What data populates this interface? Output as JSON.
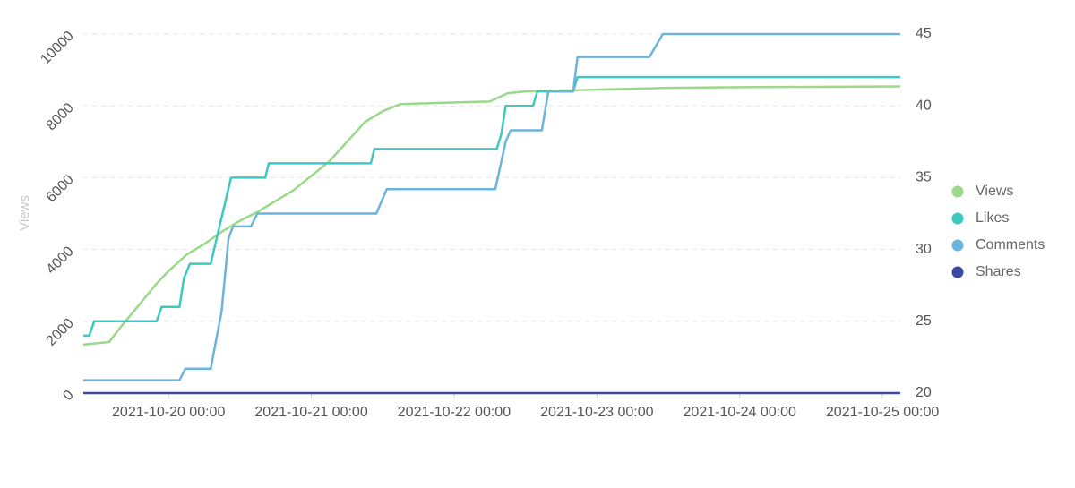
{
  "chart_data": {
    "type": "line",
    "y_label": "Views",
    "xlim": [
      "2021-10-19 09:40",
      "2021-10-25 03:00"
    ],
    "xticks": [
      "2021-10-20 00:00",
      "2021-10-21 00:00",
      "2021-10-22 00:00",
      "2021-10-23 00:00",
      "2021-10-24 00:00",
      "2021-10-25 00:00"
    ],
    "ylim": [
      0,
      10000
    ],
    "yticks": [
      0,
      2000,
      4000,
      6000,
      8000,
      10000
    ],
    "y2lim": [
      20,
      45
    ],
    "y2ticks": [
      20,
      25,
      30,
      35,
      40,
      45
    ],
    "grid": true,
    "legend": "right",
    "series": [
      {
        "name": "Views",
        "color": "#9ad88a",
        "x": [
          "2021-10-19 09:40",
          "2021-10-19 14:00",
          "2021-10-19 16:00",
          "2021-10-19 18:00",
          "2021-10-19 20:00",
          "2021-10-19 22:00",
          "2021-10-20 00:00",
          "2021-10-20 03:00",
          "2021-10-20 06:00",
          "2021-10-20 09:00",
          "2021-10-20 12:00",
          "2021-10-20 15:00",
          "2021-10-20 18:00",
          "2021-10-20 21:00",
          "2021-10-21 00:00",
          "2021-10-21 03:00",
          "2021-10-21 06:00",
          "2021-10-21 09:00",
          "2021-10-21 12:00",
          "2021-10-21 15:00",
          "2021-10-21 21:00",
          "2021-10-22 06:00",
          "2021-10-22 09:00",
          "2021-10-22 12:00",
          "2021-10-23 00:00",
          "2021-10-23 12:00",
          "2021-10-24 00:00",
          "2021-10-25 03:00"
        ],
        "values": [
          1350,
          1420,
          1850,
          2250,
          2650,
          3050,
          3400,
          3850,
          4150,
          4500,
          4800,
          5050,
          5350,
          5650,
          6050,
          6450,
          7000,
          7550,
          7850,
          8050,
          8080,
          8120,
          8350,
          8400,
          8450,
          8500,
          8520,
          8540
        ]
      },
      {
        "name": "Likes",
        "color": "#3cc9c4",
        "axis": "y2",
        "x": [
          "2021-10-19 09:40",
          "2021-10-19 10:40",
          "2021-10-19 11:30",
          "2021-10-19 22:00",
          "2021-10-19 22:50",
          "2021-10-20 01:50",
          "2021-10-20 02:35",
          "2021-10-20 03:35",
          "2021-10-20 07:05",
          "2021-10-20 08:30",
          "2021-10-20 10:30",
          "2021-10-20 16:15",
          "2021-10-20 16:50",
          "2021-10-21 10:00",
          "2021-10-21 10:35",
          "2021-10-22 07:10",
          "2021-10-22 07:55",
          "2021-10-22 08:40",
          "2021-10-22 13:15",
          "2021-10-22 14:00",
          "2021-10-22 20:00",
          "2021-10-22 20:45",
          "2021-10-25 03:00"
        ],
        "values": [
          24,
          24,
          25,
          25,
          26,
          26,
          28,
          29,
          29,
          31.5,
          35,
          35,
          36,
          36,
          37,
          37,
          38,
          40,
          40,
          41,
          41,
          42,
          42
        ]
      },
      {
        "name": "Comments",
        "color": "#6cb4dc",
        "axis": "y2",
        "x": [
          "2021-10-19 09:40",
          "2021-10-20 01:50",
          "2021-10-20 02:50",
          "2021-10-20 07:05",
          "2021-10-20 08:55",
          "2021-10-20 10:05",
          "2021-10-20 10:50",
          "2021-10-20 13:50",
          "2021-10-20 14:55",
          "2021-10-21 10:55",
          "2021-10-21 12:40",
          "2021-10-22 06:55",
          "2021-10-22 08:40",
          "2021-10-22 09:30",
          "2021-10-22 14:45",
          "2021-10-22 15:50",
          "2021-10-22 20:00",
          "2021-10-22 20:45",
          "2021-10-23 08:50",
          "2021-10-23 11:05",
          "2021-10-25 03:00"
        ],
        "values": [
          20.9,
          20.9,
          21.7,
          21.7,
          25.7,
          30.8,
          31.6,
          31.6,
          32.5,
          32.5,
          34.2,
          34.2,
          37.5,
          38.3,
          38.3,
          41,
          41,
          43.4,
          43.4,
          45,
          45
        ]
      },
      {
        "name": "Shares",
        "color": "#3949a0",
        "axis": "y2",
        "x": [
          "2021-10-19 09:40",
          "2021-10-25 03:00"
        ],
        "values": [
          20,
          20
        ]
      }
    ]
  }
}
